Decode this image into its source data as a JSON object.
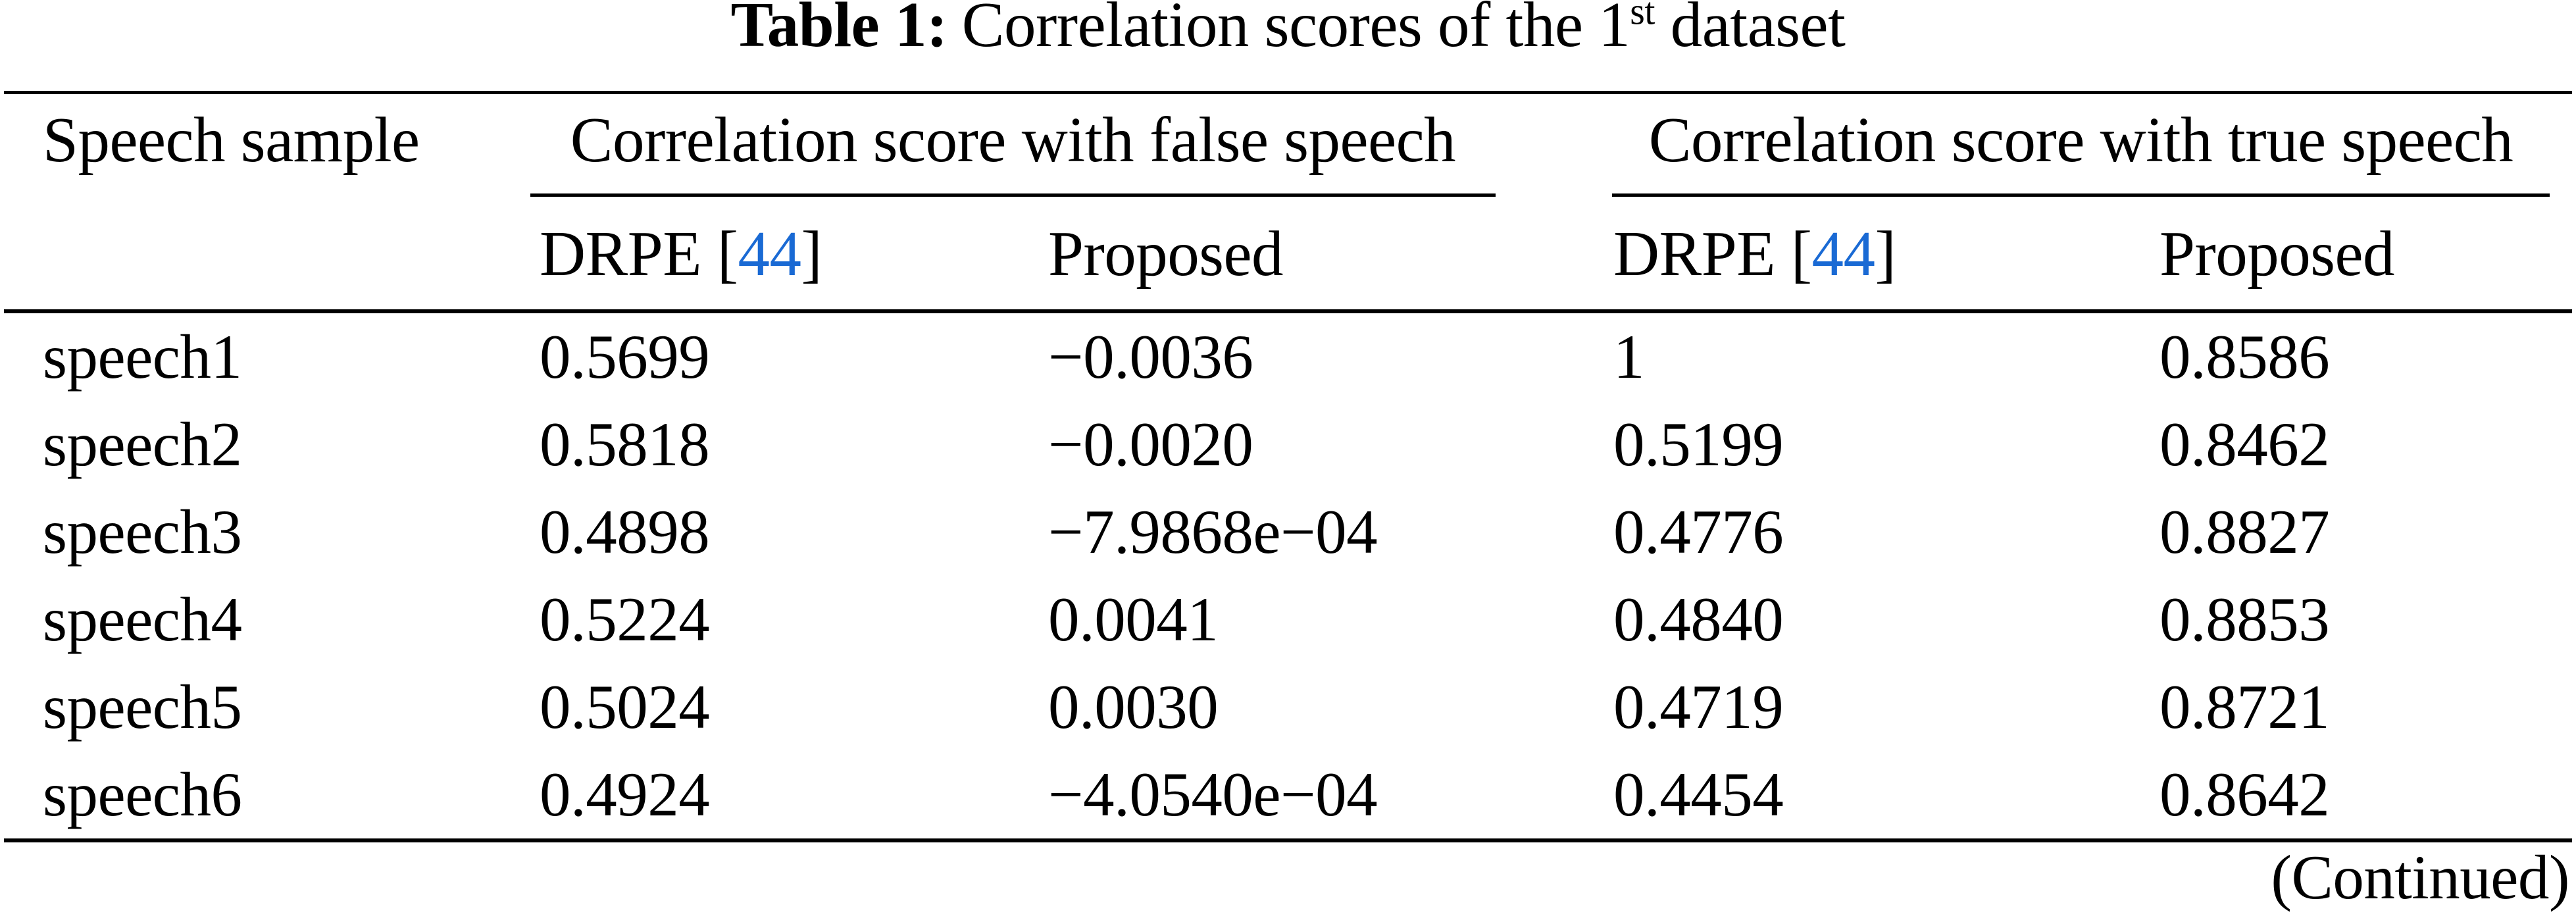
{
  "title": {
    "label": "Table 1:",
    "before_sup": "Correlation scores of the 1",
    "sup": "st",
    "after_sup": " dataset"
  },
  "header": {
    "col_sample": "Speech sample",
    "group_false": "Correlation score with false speech",
    "group_true": "Correlation score with true speech",
    "drpe_open": "DRPE [",
    "drpe_cite": "44",
    "drpe_close": "]",
    "proposed": "Proposed"
  },
  "rows": [
    {
      "sample": "speech1",
      "false_drpe": "0.5699",
      "false_proposed": "−0.0036",
      "true_drpe": "1",
      "true_proposed": "0.8586"
    },
    {
      "sample": "speech2",
      "false_drpe": "0.5818",
      "false_proposed": "−0.0020",
      "true_drpe": "0.5199",
      "true_proposed": "0.8462"
    },
    {
      "sample": "speech3",
      "false_drpe": "0.4898",
      "false_proposed": "−7.9868e−04",
      "true_drpe": "0.4776",
      "true_proposed": "0.8827"
    },
    {
      "sample": "speech4",
      "false_drpe": "0.5224",
      "false_proposed": "0.0041",
      "true_drpe": "0.4840",
      "true_proposed": "0.8853"
    },
    {
      "sample": "speech5",
      "false_drpe": "0.5024",
      "false_proposed": "0.0030",
      "true_drpe": "0.4719",
      "true_proposed": "0.8721"
    },
    {
      "sample": "speech6",
      "false_drpe": "0.4924",
      "false_proposed": "−4.0540e−04",
      "true_drpe": "0.4454",
      "true_proposed": "0.8642"
    }
  ],
  "footer": {
    "continued": "(Continued)"
  },
  "colors": {
    "citation_blue": "#1a6ad4",
    "text": "#000000",
    "background": "#ffffff"
  }
}
